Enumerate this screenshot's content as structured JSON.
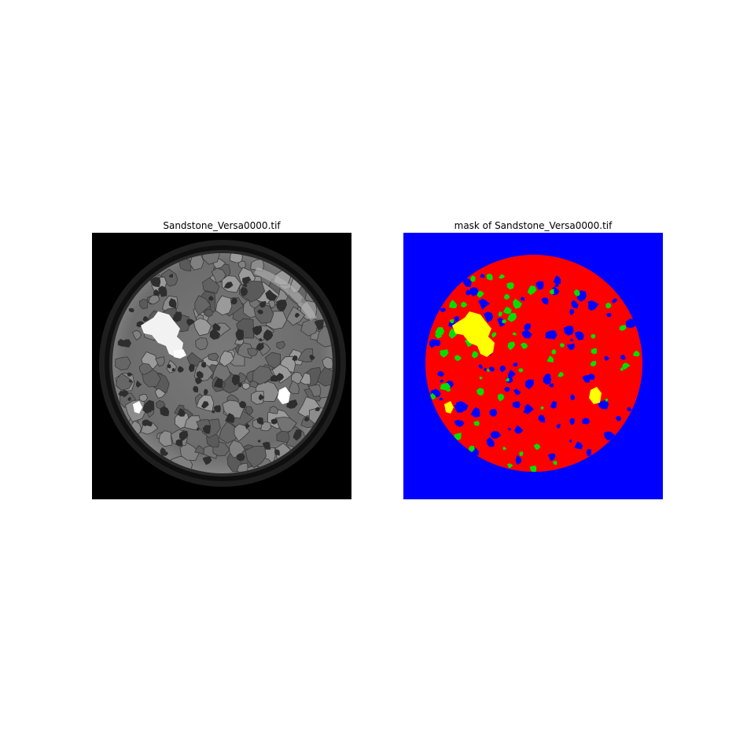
{
  "figure": {
    "left_title": "Sandstone_Versa0000.tif",
    "right_title": "mask of Sandstone_Versa0000.tif"
  },
  "colors": {
    "ct_background": "#000000",
    "mask_background": "#0000ff",
    "mask_grain": "#ff0000",
    "mask_secondary": "#00e000",
    "mask_dense": "#ffff00"
  }
}
